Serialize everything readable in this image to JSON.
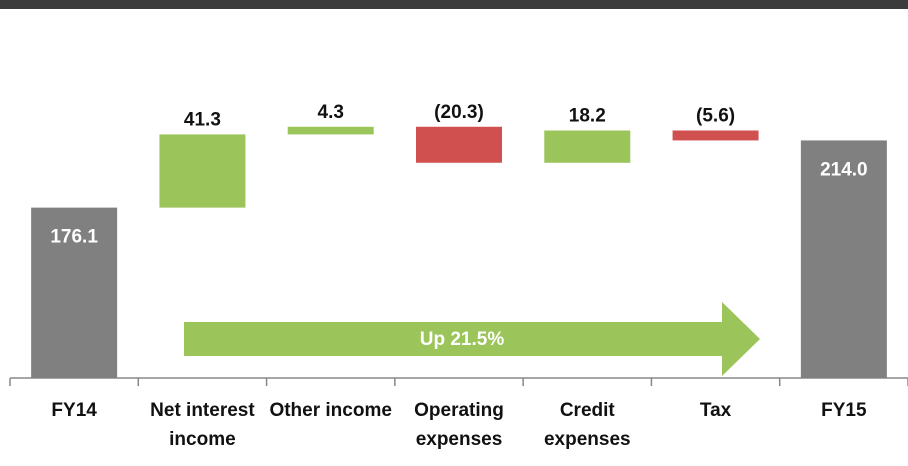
{
  "chart_data": {
    "type": "waterfall",
    "categories": [
      "FY14",
      "Net interest income",
      "Other income",
      "Operating expenses",
      "Credit expenses",
      "Tax",
      "FY15"
    ],
    "values": [
      176.1,
      41.3,
      4.3,
      -20.3,
      18.2,
      -5.6,
      214.0
    ],
    "value_labels": [
      "176.1",
      "41.3",
      "4.3",
      "(20.3)",
      "18.2",
      "(5.6)",
      "214.0"
    ],
    "colors": [
      "#808080",
      "#9bc45a",
      "#9bc45a",
      "#d0504f",
      "#9bc45a",
      "#d0504f",
      "#808080"
    ],
    "ylim": [
      80,
      265
    ],
    "annotation": "Up 21.5%"
  }
}
